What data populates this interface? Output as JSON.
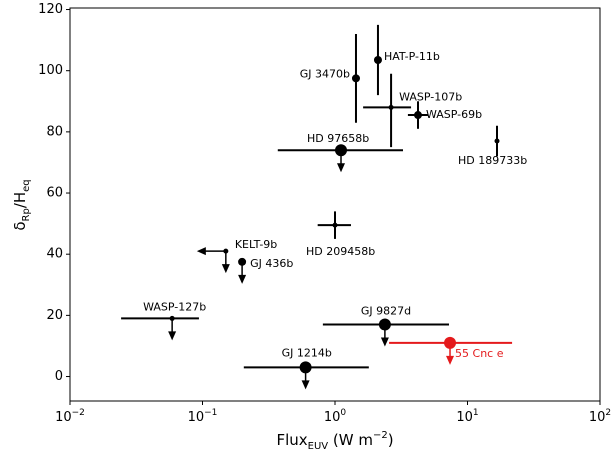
{
  "chart_data": {
    "type": "scatter",
    "xlabel_parts": [
      "Flux",
      "EUV",
      " (W m",
      "−2",
      ")"
    ],
    "ylabel_parts": [
      "δ",
      "Rp",
      "/H",
      "eq"
    ],
    "xscale": "log",
    "xlim": [
      0.01,
      100
    ],
    "ylim": [
      -8,
      120.5
    ],
    "xticks": [
      {
        "value": 0.01,
        "label": "10",
        "exponent": "−2"
      },
      {
        "value": 0.1,
        "label": "10",
        "exponent": "−1"
      },
      {
        "value": 1,
        "label": "10",
        "exponent": "0"
      },
      {
        "value": 10,
        "label": "10",
        "exponent": "1"
      },
      {
        "value": 100,
        "label": "10",
        "exponent": "2"
      }
    ],
    "yticks": [
      0,
      20,
      40,
      60,
      80,
      100,
      120
    ],
    "points": [
      {
        "label": "HAT-P-11b",
        "x": 2.11,
        "y": 103.5,
        "y_range": [
          92,
          115
        ],
        "size": "medium",
        "color": "#000000"
      },
      {
        "label": "GJ 3470b",
        "x": 1.44,
        "y": 97.5,
        "y_range": [
          83,
          112
        ],
        "size": "medium",
        "color": "#000000"
      },
      {
        "label": "WASP-107b",
        "x": 2.65,
        "y": 88,
        "x_range": [
          1.63,
          3.75
        ],
        "y_range": [
          75,
          99
        ],
        "size": "small",
        "color": "#000000"
      },
      {
        "label": "WASP-69b",
        "x": 4.23,
        "y": 85.5,
        "x_range": [
          3.55,
          5.03
        ],
        "y_range": [
          81,
          90
        ],
        "size": "medium",
        "color": "#000000"
      },
      {
        "label": "HD 189733b",
        "x": 16.7,
        "y": 77,
        "y_range": [
          72,
          82
        ],
        "size": "small",
        "color": "#000000"
      },
      {
        "label": "HD 97658b",
        "x": 1.11,
        "y": 74,
        "x_range": [
          0.37,
          3.26
        ],
        "size": "large",
        "upper_limit": true,
        "color": "#000000"
      },
      {
        "label": "HD 209458b",
        "x": 1.0,
        "y": 49.5,
        "x_range": [
          0.74,
          1.32
        ],
        "y_range": [
          45,
          54
        ],
        "size": "small",
        "color": "#000000"
      },
      {
        "label": "KELT-9b",
        "x": 0.15,
        "y": 41,
        "size": "small",
        "upper_limit": true,
        "x_upper_limit": true,
        "color": "#000000"
      },
      {
        "label": "GJ 436b",
        "x": 0.199,
        "y": 37.5,
        "size": "medium",
        "upper_limit": true,
        "color": "#000000"
      },
      {
        "label": "WASP-127b",
        "x": 0.059,
        "y": 19,
        "x_range": [
          0.0243,
          0.094
        ],
        "size": "small",
        "upper_limit": true,
        "color": "#000000"
      },
      {
        "label": "GJ 9827d",
        "x": 2.38,
        "y": 17,
        "x_range": [
          0.81,
          7.25
        ],
        "size": "large",
        "upper_limit": true,
        "color": "#000000"
      },
      {
        "label": "55 Cnc e",
        "x": 7.38,
        "y": 11,
        "x_range": [
          2.56,
          21.7
        ],
        "size": "large",
        "upper_limit": true,
        "color": "#e41a1c"
      },
      {
        "label": "GJ 1214b",
        "x": 0.6,
        "y": 3,
        "x_range": [
          0.205,
          1.8
        ],
        "size": "large",
        "upper_limit": true,
        "color": "#000000"
      }
    ]
  }
}
